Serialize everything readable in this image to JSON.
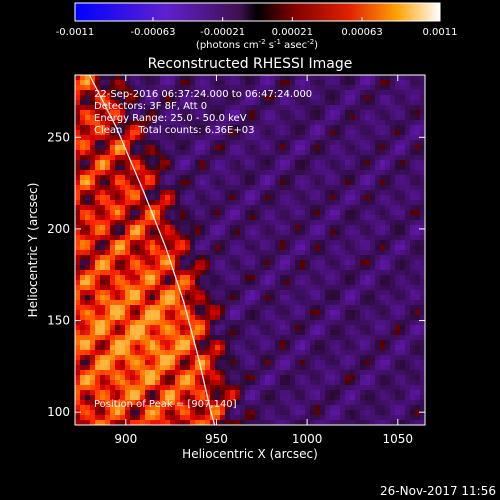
{
  "chart_data": {
    "type": "heatmap",
    "title": "Reconstructed RHESSI Image",
    "xlabel": "Heliocentric X (arcsec)",
    "ylabel": "Heliocentric Y (arcsec)",
    "xlim": [
      872,
      1065
    ],
    "ylim": [
      93,
      284
    ],
    "x_ticks": [
      900,
      950,
      1000,
      1050
    ],
    "y_ticks": [
      100,
      150,
      200,
      250
    ],
    "colorbar": {
      "min": -0.0011,
      "max": 0.0011,
      "ticks": [
        -0.0011,
        -0.00063,
        -0.00021,
        0.00021,
        0.00063,
        0.0011
      ],
      "tick_labels": [
        "-0.0011",
        "-0.00063",
        "-0.00021",
        "0.00021",
        "0.00063",
        "0.0011"
      ],
      "unit_label": "(photons cm",
      "unit_sup1": "-2",
      "unit_mid1": " s",
      "unit_sup2": "-1",
      "unit_mid2": " asec",
      "unit_sup3": "-2",
      "unit_end": ")"
    },
    "annotations": [
      "22-Sep-2016 06:37:24.000 to 06:47:24.000",
      "Detectors: 3F 8F, Att 0",
      "Energy Range: 25.0 - 50.0 keV",
      "Clean     Total counts: 6.36E+03"
    ],
    "peak_label": "Position of Peak = [907,140]",
    "peak": [
      907,
      140
    ],
    "limb_curve": [
      [
        880,
        284
      ],
      [
        895,
        255
      ],
      [
        910,
        220
      ],
      [
        922,
        190
      ],
      [
        932,
        160
      ],
      [
        940,
        130
      ],
      [
        947,
        100
      ],
      [
        949,
        93
      ]
    ]
  },
  "footer": {
    "date": "26-Nov-2017 11:56"
  }
}
